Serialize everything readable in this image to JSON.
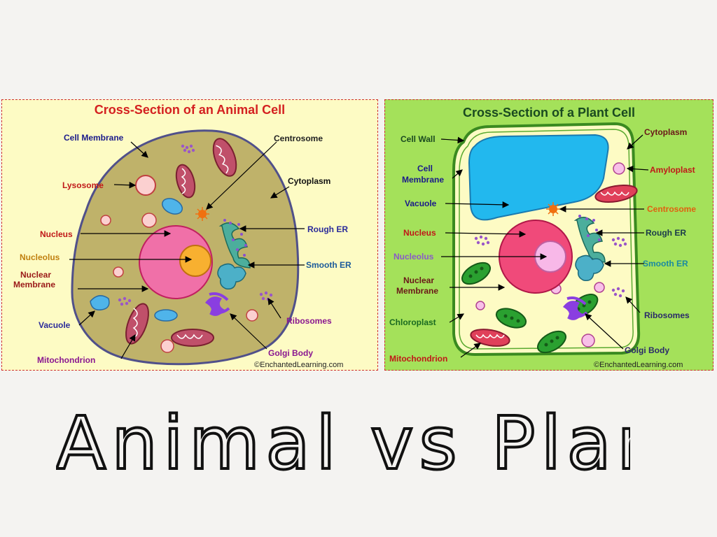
{
  "animal": {
    "title": "Cross-Section of an Animal Cell",
    "credit": "©EnchantedLearning.com",
    "labels": {
      "cell_membrane": "Cell Membrane",
      "lysosome": "Lysosome",
      "nucleus": "Nucleus",
      "nucleolus": "Nucleolus",
      "nuclear_membrane_1": "Nuclear",
      "nuclear_membrane_2": "Membrane",
      "vacuole": "Vacuole",
      "mitochondrion": "Mitochondrion",
      "centrosome": "Centrosome",
      "cytoplasm": "Cytoplasm",
      "rough_er": "Rough ER",
      "smooth_er": "Smooth ER",
      "ribosomes": "Ribosomes",
      "golgi_body": "Golgi Body"
    }
  },
  "plant": {
    "title": "Cross-Section of a Plant Cell",
    "credit": "©EnchantedLearning.com",
    "labels": {
      "cell_wall": "Cell Wall",
      "cell_membrane_1": "Cell",
      "cell_membrane_2": "Membrane",
      "vacuole": "Vacuole",
      "nucleus": "Nucleus",
      "nucleolus": "Nucleolus",
      "nuclear_membrane_1": "Nuclear",
      "nuclear_membrane_2": "Membrane",
      "chloroplast": "Chloroplast",
      "mitochondrion": "Mitochondrion",
      "cytoplasm": "Cytoplasm",
      "amyloplast": "Amyloplast",
      "centrosome": "Centrosome",
      "rough_er": "Rough ER",
      "smooth_er": "Smooth ER",
      "ribosomes": "Ribosomes",
      "golgi_body": "Golgi Body"
    }
  },
  "handwriting": "Animal vs Plant"
}
